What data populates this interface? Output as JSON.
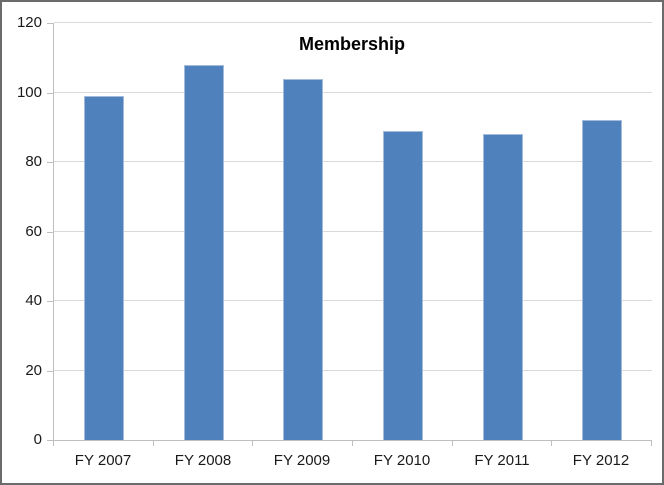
{
  "chart_data": {
    "type": "bar",
    "title": "Membership",
    "categories": [
      "FY 2007",
      "FY 2008",
      "FY 2009",
      "FY 2010",
      "FY 2011",
      "FY 2012"
    ],
    "values": [
      99,
      108,
      104,
      89,
      88,
      92
    ],
    "xlabel": "",
    "ylabel": "",
    "ylim": [
      0,
      120
    ],
    "yticks": [
      0,
      20,
      40,
      60,
      80,
      100,
      120
    ],
    "grid": "horizontal",
    "legend_position": "none",
    "colors": {
      "bar_fill": "#4F81BD",
      "bar_edge": "#A3BCDC",
      "gridline": "#D9D9D9",
      "axis_line": "#BFBFBF",
      "label_text": "#1a1a1a",
      "title_text": "#000000",
      "chart_border": "#6b6b6b",
      "background": "#FFFFFF"
    }
  }
}
